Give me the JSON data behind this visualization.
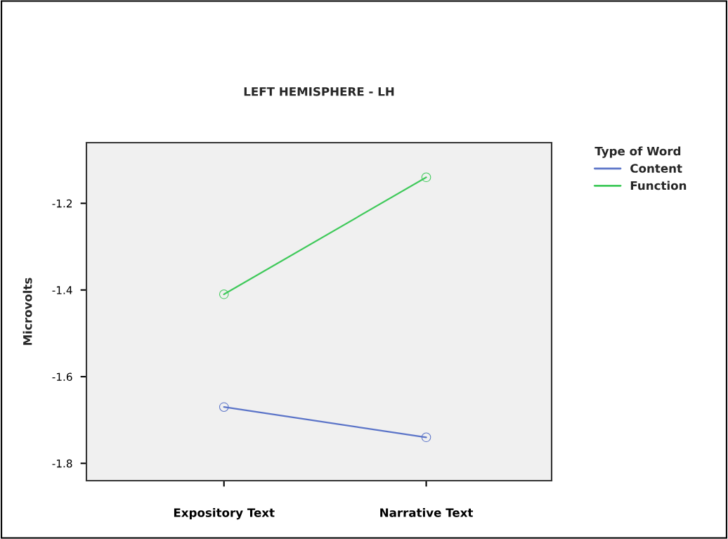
{
  "chart_data": {
    "type": "line",
    "title": "LEFT HEMISPHERE - LH",
    "ylabel": "Microvolts",
    "legend_title": "Type of Word",
    "categories": [
      "Expository Text",
      "Narrative Text"
    ],
    "series": [
      {
        "name": "Content",
        "color": "#5b74c8",
        "values": [
          -1.67,
          -1.74
        ]
      },
      {
        "name": "Function",
        "color": "#3fc95a",
        "values": [
          -1.41,
          -1.14
        ]
      }
    ],
    "ylim": [
      -1.84,
      -1.06
    ],
    "yticks": [
      -1.2,
      -1.4,
      -1.6,
      -1.8
    ],
    "grid": false,
    "legend": "top right",
    "marker": "circle",
    "line_style": "solid"
  }
}
